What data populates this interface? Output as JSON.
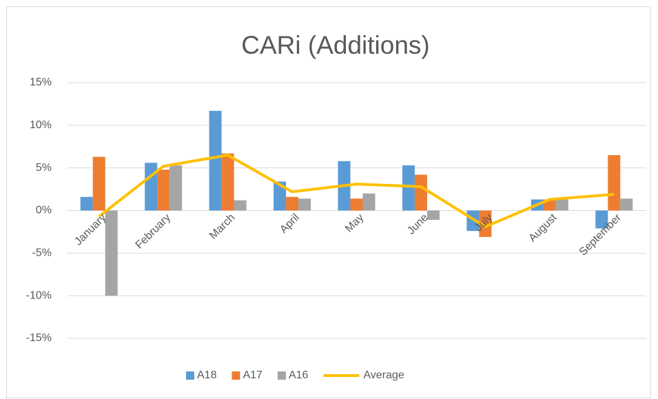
{
  "chart_data": {
    "type": "bar",
    "title": "CARi (Additions)",
    "categories": [
      "January",
      "February",
      "March",
      "April",
      "May",
      "June",
      "July",
      "August",
      "September"
    ],
    "series": [
      {
        "name": "A18",
        "type": "bar",
        "color": "#5b9bd5",
        "values": [
          1.6,
          5.6,
          11.7,
          3.4,
          5.8,
          5.3,
          -2.4,
          1.3,
          -2.1
        ]
      },
      {
        "name": "A17",
        "type": "bar",
        "color": "#ed7d31",
        "values": [
          6.3,
          4.8,
          6.7,
          1.6,
          1.4,
          4.2,
          -3.1,
          1.3,
          6.5
        ]
      },
      {
        "name": "A16",
        "type": "bar",
        "color": "#a5a5a5",
        "values": [
          -10,
          5.3,
          1.2,
          1.4,
          2.0,
          -1.1,
          0,
          1.3,
          1.4
        ]
      },
      {
        "name": "Average",
        "type": "line",
        "color": "#ffc000",
        "values": [
          -0.7,
          5.2,
          6.5,
          2.2,
          3.1,
          2.8,
          -1.9,
          1.3,
          1.9
        ]
      }
    ],
    "ylim": [
      -15,
      15
    ],
    "yticks": [
      {
        "value": -15,
        "label": "-15%"
      },
      {
        "value": -10,
        "label": "-10%"
      },
      {
        "value": -5,
        "label": "-5%"
      },
      {
        "value": 0,
        "label": "0%"
      },
      {
        "value": 5,
        "label": "5%"
      },
      {
        "value": 10,
        "label": "10%"
      },
      {
        "value": 15,
        "label": "15%"
      }
    ],
    "grid": true,
    "legend": "bottom"
  }
}
